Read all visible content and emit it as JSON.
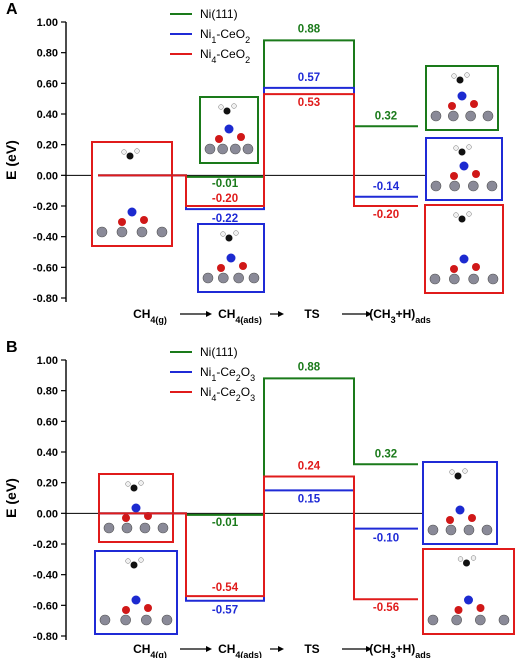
{
  "chart_data": [
    {
      "panel_label": "A",
      "type": "line",
      "ylabel": "E (eV)",
      "ylim": [
        -0.8,
        1.0
      ],
      "yticks": [
        "-0.80",
        "-0.60",
        "-0.40",
        "-0.20",
        "0.00",
        "0.20",
        "0.40",
        "0.60",
        "0.80",
        "1.00"
      ],
      "stages": [
        {
          "main": "CH",
          "sub": "4(g)"
        },
        {
          "main": "CH",
          "sub": "4(ads)"
        },
        {
          "main": "TS",
          "sub": ""
        },
        {
          "main": "(CH",
          "sub": "",
          "tail": "+H)",
          "sub2": "ads",
          "mid": "3"
        }
      ],
      "legend": [
        "Ni(111)",
        "Ni1-CeO2",
        "Ni4-CeO2"
      ],
      "series": [
        {
          "name": "Ni(111)",
          "color": "#1a7a1a",
          "values": [
            0.0,
            -0.01,
            0.88,
            0.32
          ],
          "labels": [
            "",
            "-0.01",
            "0.88",
            "0.32"
          ]
        },
        {
          "name": "Ni1-CeO2",
          "color": "#1f2ad6",
          "values": [
            0.0,
            -0.22,
            0.57,
            -0.14
          ],
          "labels": [
            "",
            "-0.22",
            "0.57",
            "-0.14"
          ]
        },
        {
          "name": "Ni4-CeO2",
          "color": "#e01b1b",
          "values": [
            0.0,
            -0.2,
            0.53,
            -0.2
          ],
          "labels": [
            "",
            "-0.20",
            "0.53",
            "-0.20"
          ]
        }
      ]
    },
    {
      "panel_label": "B",
      "type": "line",
      "ylabel": "E (eV)",
      "ylim": [
        -0.8,
        1.0
      ],
      "yticks": [
        "-0.80",
        "-0.60",
        "-0.40",
        "-0.20",
        "0.00",
        "0.20",
        "0.40",
        "0.60",
        "0.80",
        "1.00"
      ],
      "stages": [
        {
          "main": "CH",
          "sub": "4(g)"
        },
        {
          "main": "CH",
          "sub": "4(ads)"
        },
        {
          "main": "TS",
          "sub": ""
        },
        {
          "main": "(CH",
          "sub": "",
          "tail": "+H)",
          "sub2": "ads",
          "mid": "3"
        }
      ],
      "legend": [
        "Ni(111)",
        "Ni1-Ce2O3",
        "Ni4-Ce2O3"
      ],
      "series": [
        {
          "name": "Ni(111)",
          "color": "#1a7a1a",
          "values": [
            0.0,
            -0.01,
            0.88,
            0.32
          ],
          "labels": [
            "",
            "-0.01",
            "0.88",
            "0.32"
          ]
        },
        {
          "name": "Ni1-Ce2O3",
          "color": "#1f2ad6",
          "values": [
            0.0,
            -0.57,
            0.15,
            -0.1
          ],
          "labels": [
            "",
            "-0.57",
            "0.15",
            "-0.10"
          ]
        },
        {
          "name": "Ni4-Ce2O3",
          "color": "#e01b1b",
          "values": [
            0.0,
            -0.54,
            0.24,
            -0.56
          ],
          "labels": [
            "",
            "-0.54",
            "0.24",
            "-0.56"
          ]
        }
      ]
    }
  ]
}
